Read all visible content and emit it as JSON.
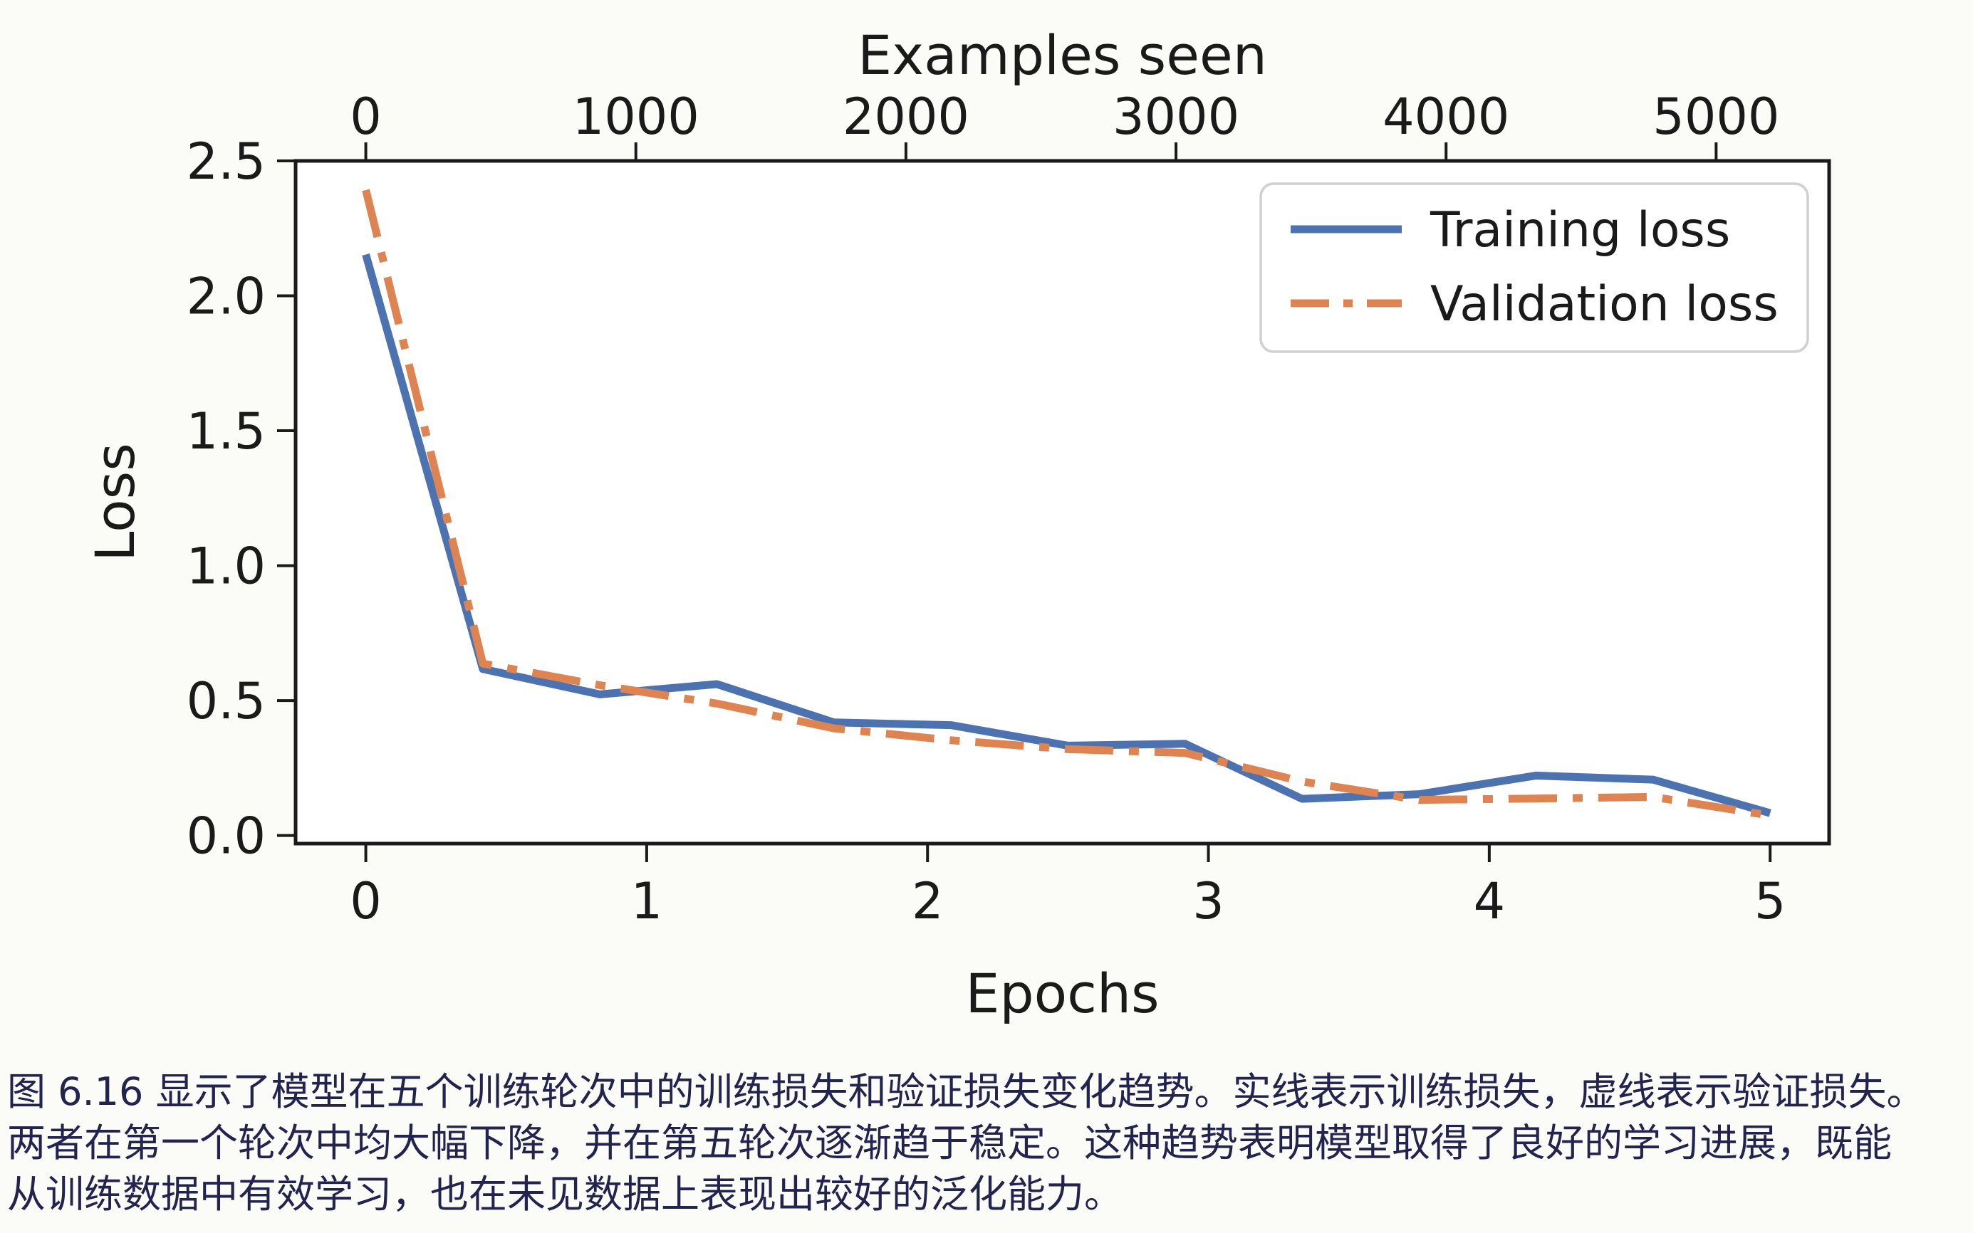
{
  "figure": {
    "caption": {
      "lines": [
        "图 6.16 显示了模型在五个训练轮次中的训练损失和验证损失变化趋势。实线表示训练损失，虚线表示验证损失。",
        "两者在第一个轮次中均大幅下降，并在第五轮次逐渐趋于稳定。这种趋势表明模型取得了良好的学习进展，既能",
        "从训练数据中有效学习，也在未见数据上表现出较好的泛化能力。"
      ]
    }
  },
  "chart_data": {
    "type": "line",
    "title": "",
    "top_xlabel": "Examples seen",
    "xlabel": "Epochs",
    "ylabel": "Loss",
    "x_ticks": [
      0,
      1,
      2,
      3,
      4,
      5
    ],
    "y_ticks": [
      "0.0",
      "0.5",
      "1.0",
      "1.5",
      "2.0",
      "2.5"
    ],
    "top_ticks": [
      0,
      1000,
      2000,
      3000,
      4000,
      5000
    ],
    "xlim": [
      -0.25,
      5.21
    ],
    "ylim": [
      -0.03,
      2.5
    ],
    "examples_per_epoch": 1040,
    "grid": false,
    "legend_position": "upper right",
    "axis_color": "#1a1a1a",
    "legend_border_color": "#d0d0d0",
    "x": [
      0,
      0.4167,
      0.8333,
      1.25,
      1.6667,
      2.0833,
      2.5,
      2.9167,
      3.3333,
      3.75,
      4.1667,
      4.5833,
      5.0
    ],
    "series": [
      {
        "name": "Training loss",
        "style": "solid",
        "color": "#4C72B0",
        "values": [
          2.153,
          0.617,
          0.523,
          0.561,
          0.419,
          0.409,
          0.333,
          0.34,
          0.136,
          0.153,
          0.222,
          0.207,
          0.083
        ]
      },
      {
        "name": "Validation loss",
        "style": "dashdot",
        "color": "#DD8452",
        "values": [
          2.392,
          0.637,
          0.557,
          0.489,
          0.397,
          0.353,
          0.32,
          0.306,
          0.2,
          0.132,
          0.137,
          0.143,
          0.074
        ]
      }
    ]
  }
}
